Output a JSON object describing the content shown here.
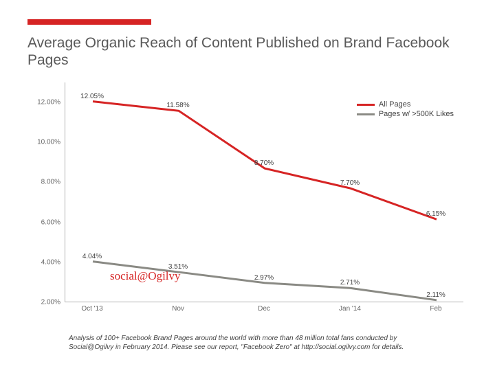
{
  "accent_color": "#d62424",
  "title": "Average Organic Reach of Content Published on Brand Facebook Pages",
  "chart": {
    "type": "line",
    "ylim": [
      2,
      13
    ],
    "ytick_step": 2,
    "ytick_format_suffix": ".00%",
    "categories": [
      "Oct '13",
      "Nov",
      "Dec",
      "Jan '14",
      "Feb"
    ],
    "series": [
      {
        "name": "All Pages",
        "color": "#d62424",
        "line_width": 3,
        "values": [
          12.05,
          11.58,
          8.7,
          7.7,
          6.15
        ],
        "value_labels": [
          "12.05%",
          "11.58%",
          "8.70%",
          "7.70%",
          "6.15%"
        ]
      },
      {
        "name": "Pages w/ >500K Likes",
        "color": "#8a8a84",
        "line_width": 3,
        "values": [
          4.04,
          3.51,
          2.97,
          2.71,
          2.11
        ],
        "value_labels": [
          "4.04%",
          "3.51%",
          "2.97%",
          "2.71%",
          "2.11%"
        ]
      }
    ],
    "axis_color": "#b0b0b0",
    "tick_label_color": "#666666",
    "background_color": "#ffffff",
    "label_fontsize": 10
  },
  "watermark": {
    "text": "social@Ogilvy",
    "color": "#d62424"
  },
  "caption": "Analysis of 100+ Facebook Brand Pages around the world with more than 48 million total fans conducted by Social@Ogilvy in February 2014. Please see our report, \"Facebook Zero\" at http://social.ogilvy.com for details."
}
